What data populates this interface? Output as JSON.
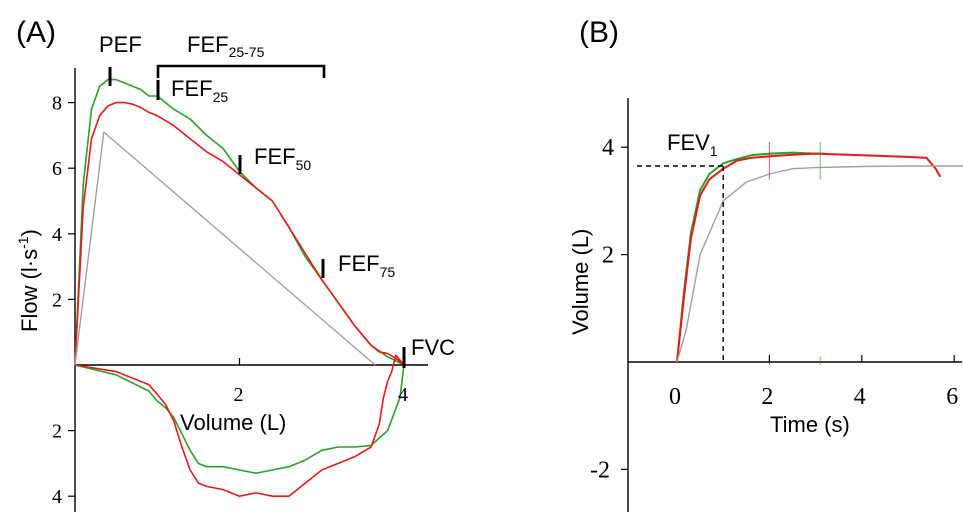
{
  "panels": {
    "a_label": "(A)",
    "b_label": "(B)"
  },
  "chart_data": [
    {
      "type": "line",
      "panel": "(A)",
      "title": "",
      "xlabel": "Volume (L)",
      "ylabel": "Flow (l·s-1)",
      "ylabel_text": "Flow (l·s",
      "ylabel_sup": "-1",
      "ylabel_tail": ")",
      "xlim": [
        0,
        4.2
      ],
      "ylim": [
        -4.3,
        9.0
      ],
      "x_ticks": [
        {
          "value": 2,
          "label": "2"
        },
        {
          "value": 4,
          "label": "4"
        }
      ],
      "y_ticks": [
        {
          "value": 8,
          "label": "8"
        },
        {
          "value": 6,
          "label": "6"
        },
        {
          "value": 4,
          "label": "4"
        },
        {
          "value": 2,
          "label": "2"
        },
        {
          "value": -2,
          "label": "2"
        },
        {
          "value": -4,
          "label": "4"
        }
      ],
      "annotations": {
        "pef": "PEF",
        "fef2575_base": "FEF",
        "fef2575_sub": "25-75",
        "fef25_base": "FEF",
        "fef25_sub": "25",
        "fef50_base": "FEF",
        "fef50_sub": "50",
        "fef75_base": "FEF",
        "fef75_sub": "75",
        "fvc": "FVC"
      },
      "colors": {
        "green": "#2ca02c",
        "red": "#e41a1c",
        "gray": "#a0a0a0"
      },
      "series": [
        {
          "color": "green",
          "x": [
            0,
            0.1,
            0.2,
            0.3,
            0.4,
            0.5,
            0.6,
            0.7,
            0.8,
            0.9,
            1.0,
            1.2,
            1.4,
            1.6,
            1.8,
            2.0,
            2.2,
            2.4,
            2.6,
            2.8,
            3.0,
            3.2,
            3.4,
            3.6,
            3.8,
            4.0
          ],
          "y": [
            0,
            5.5,
            7.8,
            8.5,
            8.7,
            8.7,
            8.6,
            8.5,
            8.4,
            8.2,
            8.2,
            7.8,
            7.5,
            7.0,
            6.6,
            5.9,
            5.4,
            5.0,
            4.2,
            3.3,
            2.6,
            1.9,
            1.2,
            0.6,
            0.25,
            0
          ]
        },
        {
          "color": "red",
          "x": [
            0,
            0.1,
            0.2,
            0.3,
            0.4,
            0.5,
            0.6,
            0.7,
            0.8,
            0.9,
            1.0,
            1.2,
            1.4,
            1.6,
            1.8,
            2.0,
            2.2,
            2.4,
            2.6,
            2.8,
            3.0,
            3.2,
            3.4,
            3.6,
            3.7,
            3.8,
            3.9,
            4.0
          ],
          "y": [
            0,
            4.8,
            6.9,
            7.6,
            7.9,
            8.0,
            8.0,
            7.95,
            7.85,
            7.7,
            7.6,
            7.3,
            6.9,
            6.5,
            6.2,
            5.8,
            5.4,
            5.0,
            4.2,
            3.4,
            2.6,
            1.9,
            1.2,
            0.6,
            0.4,
            0.35,
            0.2,
            0
          ]
        },
        {
          "color": "gray",
          "x": [
            0,
            0.35,
            3.65
          ],
          "y": [
            0,
            7.1,
            0
          ]
        },
        {
          "color": "green",
          "x": [
            0,
            0.5,
            0.9,
            1.0,
            1.1,
            1.2,
            1.3,
            1.4,
            1.5,
            1.6,
            1.8,
            2.0,
            2.2,
            2.4,
            2.6,
            2.8,
            3.0,
            3.2,
            3.4,
            3.6,
            3.8,
            3.95,
            4.0
          ],
          "y": [
            0,
            -0.3,
            -0.8,
            -1.1,
            -1.3,
            -1.6,
            -2.1,
            -2.6,
            -3.0,
            -3.1,
            -3.1,
            -3.2,
            -3.3,
            -3.2,
            -3.1,
            -2.9,
            -2.6,
            -2.5,
            -2.5,
            -2.45,
            -2.0,
            -1.0,
            0
          ]
        },
        {
          "color": "red",
          "x": [
            0,
            0.5,
            0.9,
            1.0,
            1.1,
            1.2,
            1.3,
            1.4,
            1.5,
            1.6,
            1.8,
            2.0,
            2.2,
            2.4,
            2.6,
            2.8,
            3.0,
            3.2,
            3.4,
            3.6,
            3.7,
            3.75,
            3.8,
            3.85,
            3.9,
            4.0
          ],
          "y": [
            0,
            -0.2,
            -0.6,
            -0.9,
            -1.2,
            -1.7,
            -2.5,
            -3.2,
            -3.6,
            -3.7,
            -3.8,
            -4.0,
            -3.9,
            -4.0,
            -4.0,
            -3.6,
            -3.2,
            -3.0,
            -2.8,
            -2.5,
            -1.8,
            -1.0,
            -0.5,
            -0.2,
            0.3,
            0
          ]
        }
      ]
    },
    {
      "type": "line",
      "panel": "(B)",
      "title": "",
      "xlabel": "Time (s)",
      "ylabel": "Volume (L)",
      "xlim": [
        -1.0,
        6.2
      ],
      "ylim": [
        -2.8,
        5.0
      ],
      "x_ticks": [
        {
          "value": 0,
          "label": "0"
        },
        {
          "value": 2,
          "label": "2"
        },
        {
          "value": 4,
          "label": "4"
        },
        {
          "value": 6,
          "label": "6"
        }
      ],
      "y_ticks": [
        {
          "value": 4,
          "label": "4"
        },
        {
          "value": 2,
          "label": "2"
        },
        {
          "value": -2,
          "label": "-2"
        }
      ],
      "annotations": {
        "fev1_base": "FEV",
        "fev1_sub": "1"
      },
      "fev1_point": {
        "x": 1,
        "y": 3.65
      },
      "series": [
        {
          "color": "green",
          "x": [
            0,
            0.15,
            0.3,
            0.5,
            0.7,
            1.0,
            1.3,
            1.6,
            2.0,
            2.5,
            3.0,
            3.2
          ],
          "y": [
            0,
            1.3,
            2.4,
            3.2,
            3.5,
            3.7,
            3.78,
            3.85,
            3.88,
            3.9,
            3.88,
            3.88
          ]
        },
        {
          "color": "red",
          "x": [
            0,
            0.15,
            0.3,
            0.5,
            0.7,
            1.0,
            1.3,
            1.6,
            2.0,
            2.5,
            3.0,
            4.0,
            5.0,
            5.4,
            5.6,
            5.7
          ],
          "y": [
            0,
            1.2,
            2.3,
            3.1,
            3.4,
            3.6,
            3.75,
            3.8,
            3.83,
            3.86,
            3.88,
            3.85,
            3.82,
            3.8,
            3.6,
            3.45
          ]
        },
        {
          "color": "gray",
          "x": [
            0,
            0.2,
            0.5,
            1.0,
            1.5,
            2.0,
            2.5,
            3.0,
            4.0,
            5.0,
            6.0,
            6.2
          ],
          "y": [
            0,
            0.6,
            2.0,
            3.0,
            3.35,
            3.5,
            3.6,
            3.62,
            3.64,
            3.65,
            3.65,
            3.65
          ]
        }
      ]
    }
  ]
}
